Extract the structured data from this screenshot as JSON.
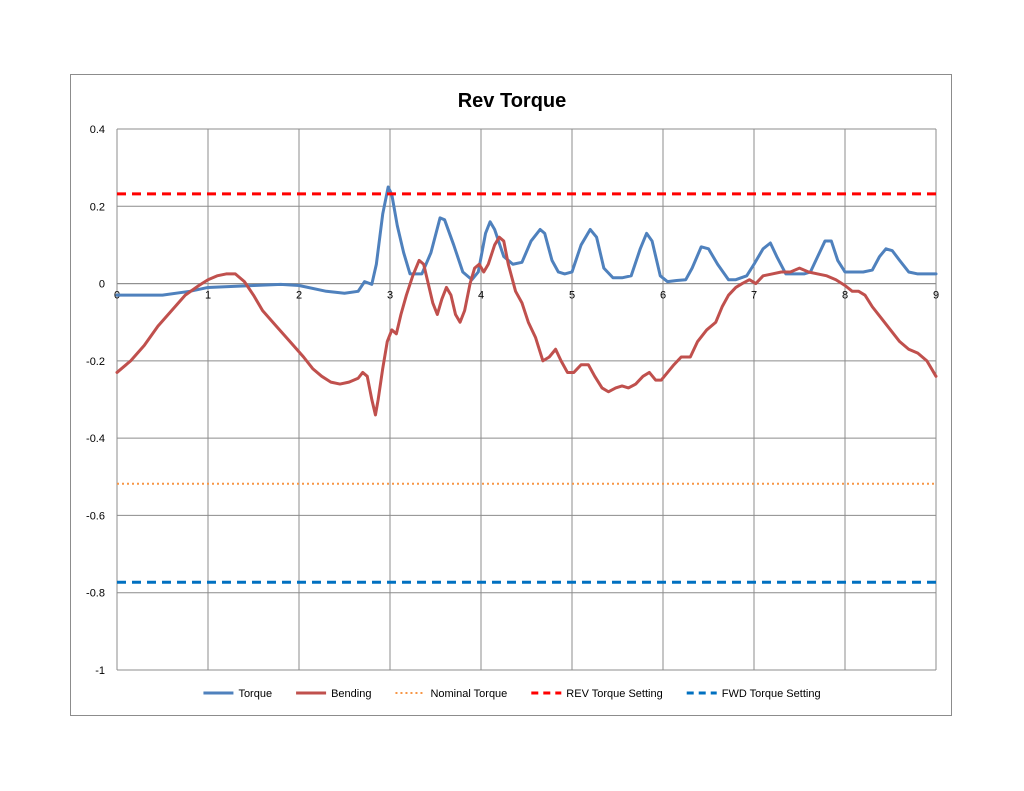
{
  "chart_data": {
    "type": "line",
    "title": "Rev Torque",
    "xlabel": "",
    "ylabel": "",
    "xlim": [
      0,
      9
    ],
    "ylim": [
      -1,
      0.4
    ],
    "x_ticks": [
      "0",
      "1",
      "2",
      "3",
      "4",
      "5",
      "6",
      "7",
      "8",
      "9"
    ],
    "y_ticks": [
      "0.4",
      "0.2",
      "0",
      "-0.2",
      "-0.4",
      "-0.6",
      "-0.8",
      "-1"
    ],
    "grid": true,
    "legend_position": "bottom",
    "series": [
      {
        "name": "Torque",
        "color": "#4F81BD",
        "style": "solid",
        "points": [
          [
            0,
            -0.03
          ],
          [
            0.5,
            -0.03
          ],
          [
            0.8,
            -0.02
          ],
          [
            1,
            -0.01
          ],
          [
            1.5,
            -0.005
          ],
          [
            1.8,
            -0.002
          ],
          [
            2,
            -0.005
          ],
          [
            2.3,
            -0.02
          ],
          [
            2.5,
            -0.025
          ],
          [
            2.65,
            -0.02
          ],
          [
            2.72,
            0.005
          ],
          [
            2.8,
            -0.002
          ],
          [
            2.85,
            0.05
          ],
          [
            2.92,
            0.18
          ],
          [
            2.98,
            0.25
          ],
          [
            3.02,
            0.23
          ],
          [
            3.08,
            0.15
          ],
          [
            3.15,
            0.08
          ],
          [
            3.22,
            0.025
          ],
          [
            3.35,
            0.025
          ],
          [
            3.45,
            0.08
          ],
          [
            3.55,
            0.17
          ],
          [
            3.6,
            0.165
          ],
          [
            3.7,
            0.1
          ],
          [
            3.8,
            0.03
          ],
          [
            3.9,
            0.01
          ],
          [
            3.97,
            0.03
          ],
          [
            4.05,
            0.13
          ],
          [
            4.1,
            0.16
          ],
          [
            4.15,
            0.14
          ],
          [
            4.25,
            0.07
          ],
          [
            4.35,
            0.05
          ],
          [
            4.45,
            0.055
          ],
          [
            4.55,
            0.11
          ],
          [
            4.65,
            0.14
          ],
          [
            4.7,
            0.13
          ],
          [
            4.78,
            0.06
          ],
          [
            4.85,
            0.03
          ],
          [
            4.92,
            0.025
          ],
          [
            5.0,
            0.03
          ],
          [
            5.1,
            0.1
          ],
          [
            5.2,
            0.14
          ],
          [
            5.27,
            0.12
          ],
          [
            5.35,
            0.04
          ],
          [
            5.45,
            0.015
          ],
          [
            5.55,
            0.015
          ],
          [
            5.65,
            0.02
          ],
          [
            5.75,
            0.09
          ],
          [
            5.82,
            0.13
          ],
          [
            5.88,
            0.11
          ],
          [
            5.97,
            0.02
          ],
          [
            6.05,
            0.005
          ],
          [
            6.15,
            0.008
          ],
          [
            6.25,
            0.01
          ],
          [
            6.32,
            0.04
          ],
          [
            6.42,
            0.095
          ],
          [
            6.5,
            0.09
          ],
          [
            6.6,
            0.05
          ],
          [
            6.72,
            0.01
          ],
          [
            6.8,
            0.01
          ],
          [
            6.92,
            0.02
          ],
          [
            7.0,
            0.05
          ],
          [
            7.1,
            0.09
          ],
          [
            7.18,
            0.105
          ],
          [
            7.25,
            0.07
          ],
          [
            7.35,
            0.025
          ],
          [
            7.45,
            0.025
          ],
          [
            7.55,
            0.025
          ],
          [
            7.62,
            0.03
          ],
          [
            7.7,
            0.07
          ],
          [
            7.78,
            0.11
          ],
          [
            7.85,
            0.11
          ],
          [
            7.92,
            0.06
          ],
          [
            8.0,
            0.03
          ],
          [
            8.1,
            0.03
          ],
          [
            8.2,
            0.03
          ],
          [
            8.3,
            0.035
          ],
          [
            8.38,
            0.07
          ],
          [
            8.45,
            0.09
          ],
          [
            8.52,
            0.085
          ],
          [
            8.6,
            0.06
          ],
          [
            8.7,
            0.03
          ],
          [
            8.8,
            0.025
          ],
          [
            9.0,
            0.025
          ]
        ]
      },
      {
        "name": "Bending",
        "color": "#C0504D",
        "style": "solid",
        "points": [
          [
            0,
            -0.23
          ],
          [
            0.15,
            -0.2
          ],
          [
            0.3,
            -0.16
          ],
          [
            0.45,
            -0.11
          ],
          [
            0.6,
            -0.07
          ],
          [
            0.75,
            -0.03
          ],
          [
            0.9,
            -0.005
          ],
          [
            1.0,
            0.01
          ],
          [
            1.1,
            0.02
          ],
          [
            1.2,
            0.025
          ],
          [
            1.3,
            0.025
          ],
          [
            1.4,
            0.005
          ],
          [
            1.5,
            -0.03
          ],
          [
            1.6,
            -0.07
          ],
          [
            1.75,
            -0.11
          ],
          [
            1.9,
            -0.15
          ],
          [
            2.05,
            -0.19
          ],
          [
            2.15,
            -0.22
          ],
          [
            2.25,
            -0.24
          ],
          [
            2.35,
            -0.255
          ],
          [
            2.45,
            -0.26
          ],
          [
            2.55,
            -0.255
          ],
          [
            2.65,
            -0.245
          ],
          [
            2.7,
            -0.23
          ],
          [
            2.75,
            -0.24
          ],
          [
            2.8,
            -0.3
          ],
          [
            2.84,
            -0.34
          ],
          [
            2.87,
            -0.3
          ],
          [
            2.92,
            -0.22
          ],
          [
            2.97,
            -0.15
          ],
          [
            3.02,
            -0.12
          ],
          [
            3.07,
            -0.13
          ],
          [
            3.12,
            -0.08
          ],
          [
            3.18,
            -0.03
          ],
          [
            3.25,
            0.02
          ],
          [
            3.32,
            0.06
          ],
          [
            3.37,
            0.05
          ],
          [
            3.42,
            0.0
          ],
          [
            3.47,
            -0.05
          ],
          [
            3.52,
            -0.08
          ],
          [
            3.57,
            -0.04
          ],
          [
            3.62,
            -0.01
          ],
          [
            3.67,
            -0.03
          ],
          [
            3.72,
            -0.08
          ],
          [
            3.77,
            -0.1
          ],
          [
            3.82,
            -0.07
          ],
          [
            3.88,
            0.0
          ],
          [
            3.93,
            0.04
          ],
          [
            3.98,
            0.05
          ],
          [
            4.03,
            0.03
          ],
          [
            4.08,
            0.05
          ],
          [
            4.15,
            0.1
          ],
          [
            4.2,
            0.12
          ],
          [
            4.25,
            0.11
          ],
          [
            4.3,
            0.05
          ],
          [
            4.38,
            -0.02
          ],
          [
            4.45,
            -0.05
          ],
          [
            4.52,
            -0.1
          ],
          [
            4.6,
            -0.14
          ],
          [
            4.68,
            -0.2
          ],
          [
            4.75,
            -0.19
          ],
          [
            4.82,
            -0.17
          ],
          [
            4.88,
            -0.2
          ],
          [
            4.95,
            -0.23
          ],
          [
            5.02,
            -0.23
          ],
          [
            5.1,
            -0.21
          ],
          [
            5.18,
            -0.21
          ],
          [
            5.25,
            -0.24
          ],
          [
            5.33,
            -0.27
          ],
          [
            5.4,
            -0.28
          ],
          [
            5.48,
            -0.27
          ],
          [
            5.55,
            -0.265
          ],
          [
            5.62,
            -0.27
          ],
          [
            5.7,
            -0.26
          ],
          [
            5.78,
            -0.24
          ],
          [
            5.85,
            -0.23
          ],
          [
            5.92,
            -0.25
          ],
          [
            5.98,
            -0.25
          ],
          [
            6.05,
            -0.23
          ],
          [
            6.12,
            -0.21
          ],
          [
            6.2,
            -0.19
          ],
          [
            6.3,
            -0.19
          ],
          [
            6.38,
            -0.15
          ],
          [
            6.48,
            -0.12
          ],
          [
            6.58,
            -0.1
          ],
          [
            6.65,
            -0.06
          ],
          [
            6.72,
            -0.03
          ],
          [
            6.8,
            -0.01
          ],
          [
            6.87,
            0.0
          ],
          [
            6.95,
            0.01
          ],
          [
            7.02,
            0.0
          ],
          [
            7.1,
            0.02
          ],
          [
            7.2,
            0.025
          ],
          [
            7.3,
            0.03
          ],
          [
            7.4,
            0.03
          ],
          [
            7.5,
            0.04
          ],
          [
            7.6,
            0.03
          ],
          [
            7.7,
            0.025
          ],
          [
            7.8,
            0.02
          ],
          [
            7.9,
            0.01
          ],
          [
            8.0,
            -0.005
          ],
          [
            8.08,
            -0.02
          ],
          [
            8.15,
            -0.02
          ],
          [
            8.22,
            -0.03
          ],
          [
            8.3,
            -0.06
          ],
          [
            8.4,
            -0.09
          ],
          [
            8.5,
            -0.12
          ],
          [
            8.6,
            -0.15
          ],
          [
            8.7,
            -0.17
          ],
          [
            8.8,
            -0.18
          ],
          [
            8.9,
            -0.2
          ],
          [
            9.0,
            -0.24
          ]
        ]
      },
      {
        "name": "Nominal Torque",
        "color": "#F79646",
        "style": "dotted",
        "points": [
          [
            0,
            -0.518
          ],
          [
            9,
            -0.518
          ]
        ]
      },
      {
        "name": "REV Torque Setting",
        "color": "#FF0000",
        "style": "dashed",
        "points": [
          [
            0,
            0.232
          ],
          [
            9,
            0.232
          ]
        ]
      },
      {
        "name": "FWD Torque Setting",
        "color": "#0070C0",
        "style": "dashed",
        "points": [
          [
            0,
            -0.773
          ],
          [
            9,
            -0.773
          ]
        ]
      }
    ]
  }
}
